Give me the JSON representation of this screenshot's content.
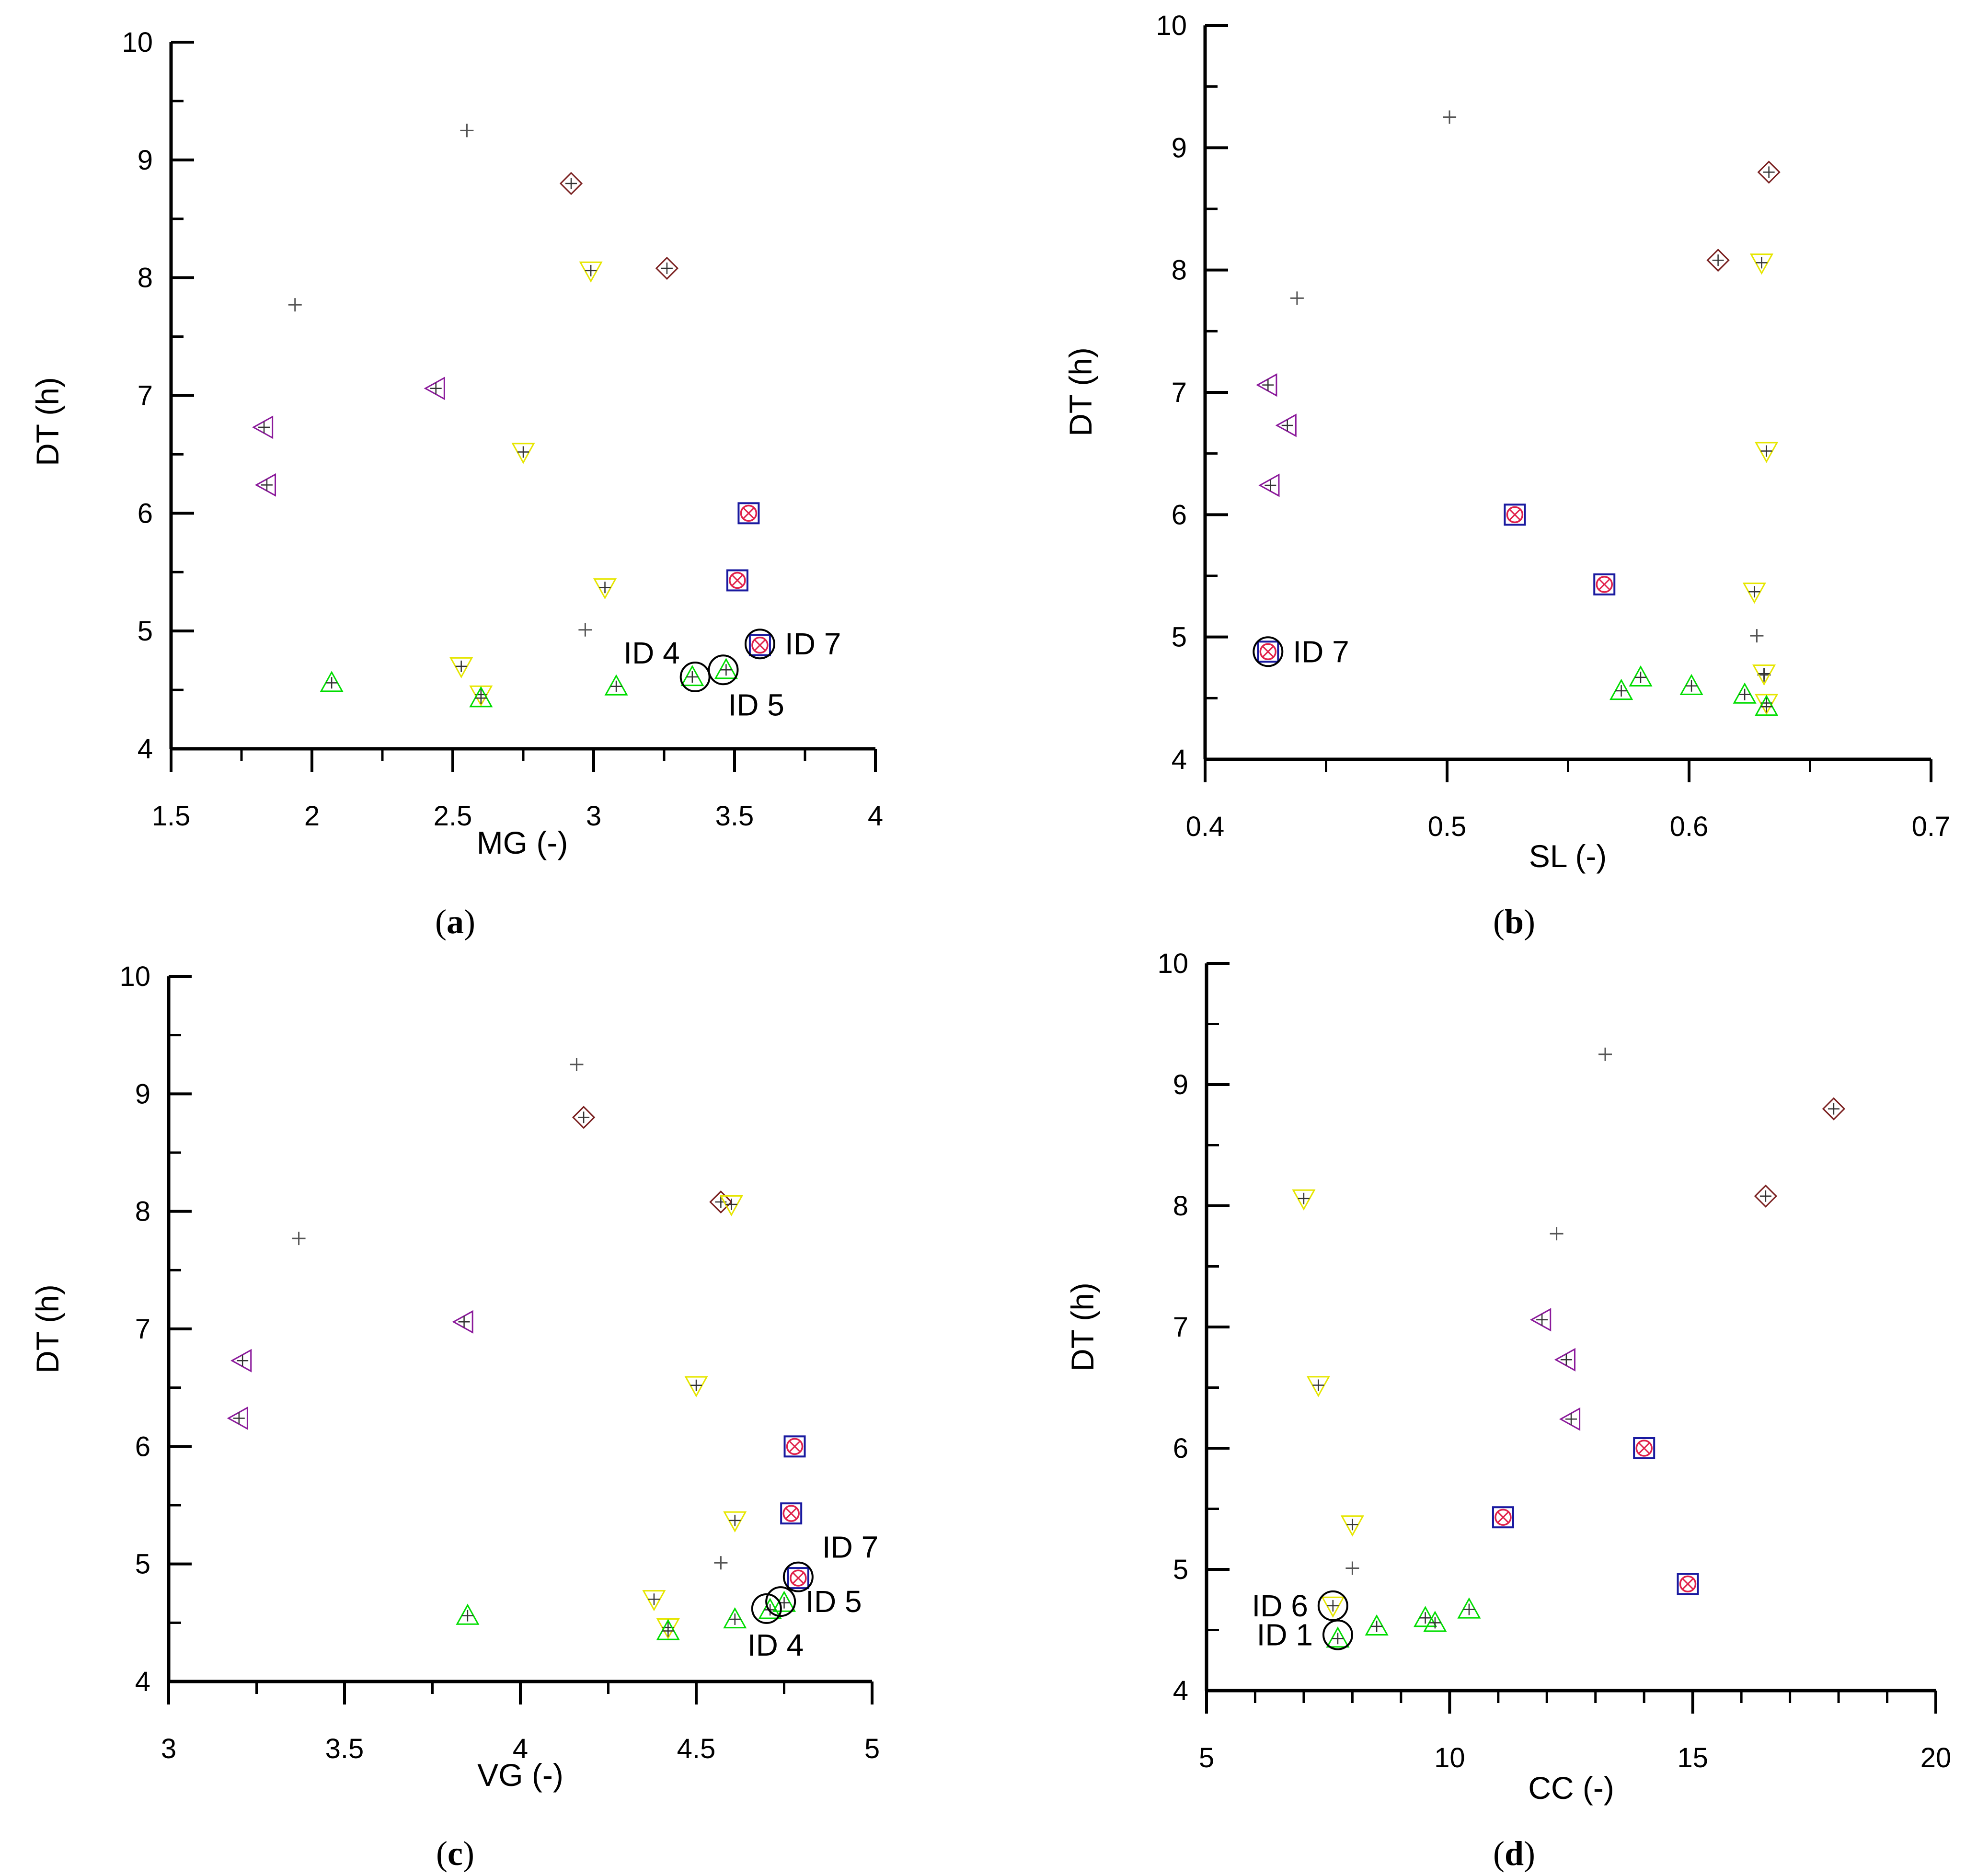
{
  "figure": {
    "colors": {
      "plus": "#555555",
      "triangle_up": "#00dd00",
      "triangle_down": "#e6e600",
      "triangle_left": "#8b1a9b",
      "diamond": "#7a2020",
      "square": "#1a1aa0",
      "circle_x": "#e0204a",
      "annotation": "#000000"
    }
  },
  "chart_data": [
    {
      "id": "a",
      "type": "scatter",
      "caption": {
        "open": "(",
        "letter": "a",
        "close": ")"
      },
      "xlabel": "MG (-)",
      "ylabel": "DT (h)",
      "xlim": [
        1.5,
        4
      ],
      "ylim": [
        4,
        10
      ],
      "xticks": [
        "1.5",
        "2",
        "2.5",
        "3",
        "3.5",
        "4"
      ],
      "yticks": [
        "4",
        "5",
        "6",
        "7",
        "8",
        "9",
        "10"
      ],
      "points": [
        {
          "m": "plus",
          "x": 2.55,
          "y": 9.25
        },
        {
          "m": "plus",
          "x": 1.94,
          "y": 7.77
        },
        {
          "m": "plus",
          "x": 2.97,
          "y": 5.01
        },
        {
          "m": "diamond",
          "x": 2.92,
          "y": 8.8
        },
        {
          "m": "diamond",
          "x": 3.26,
          "y": 8.08
        },
        {
          "m": "tri_down",
          "x": 2.99,
          "y": 8.06
        },
        {
          "m": "tri_down",
          "x": 2.75,
          "y": 6.52
        },
        {
          "m": "tri_down",
          "x": 3.04,
          "y": 5.37
        },
        {
          "m": "tri_down",
          "x": 2.53,
          "y": 4.7
        },
        {
          "m": "tri_down",
          "x": 2.6,
          "y": 4.46
        },
        {
          "m": "tri_left",
          "x": 2.44,
          "y": 7.06
        },
        {
          "m": "tri_left",
          "x": 1.83,
          "y": 6.73
        },
        {
          "m": "tri_left",
          "x": 1.84,
          "y": 6.24
        },
        {
          "m": "square_x",
          "x": 3.55,
          "y": 6.0
        },
        {
          "m": "square_x",
          "x": 3.51,
          "y": 5.43
        },
        {
          "m": "square_x",
          "x": 3.59,
          "y": 4.88
        },
        {
          "m": "tri_up",
          "x": 2.07,
          "y": 4.56
        },
        {
          "m": "tri_up",
          "x": 2.6,
          "y": 4.43
        },
        {
          "m": "tri_up",
          "x": 3.08,
          "y": 4.53
        },
        {
          "m": "tri_up",
          "x": 3.35,
          "y": 4.61
        },
        {
          "m": "tri_up",
          "x": 3.47,
          "y": 4.67
        }
      ],
      "annotations": [
        {
          "text": "ID 4",
          "x": 3.36,
          "y": 4.61,
          "side": "upper-left"
        },
        {
          "text": "ID 5",
          "x": 3.46,
          "y": 4.67,
          "side": "lower-right"
        },
        {
          "text": "ID 7",
          "x": 3.59,
          "y": 4.89,
          "side": "right"
        }
      ]
    },
    {
      "id": "b",
      "type": "scatter",
      "caption": {
        "open": "(",
        "letter": "b",
        "close": ")"
      },
      "xlabel": "SL (-)",
      "ylabel": "DT (h)",
      "xlim": [
        0.4,
        0.7
      ],
      "ylim": [
        4,
        10
      ],
      "xticks": [
        "0.4",
        "0.5",
        "0.6",
        "0.7"
      ],
      "yticks": [
        "4",
        "5",
        "6",
        "7",
        "8",
        "9",
        "10"
      ],
      "points": [
        {
          "m": "plus",
          "x": 0.501,
          "y": 9.25
        },
        {
          "m": "plus",
          "x": 0.438,
          "y": 7.77
        },
        {
          "m": "plus",
          "x": 0.628,
          "y": 5.01
        },
        {
          "m": "plus",
          "x": 0.631,
          "y": 4.69
        },
        {
          "m": "diamond",
          "x": 0.633,
          "y": 8.8
        },
        {
          "m": "diamond",
          "x": 0.612,
          "y": 8.08
        },
        {
          "m": "tri_down",
          "x": 0.63,
          "y": 8.06
        },
        {
          "m": "tri_down",
          "x": 0.632,
          "y": 6.52
        },
        {
          "m": "tri_down",
          "x": 0.627,
          "y": 5.37
        },
        {
          "m": "tri_down",
          "x": 0.631,
          "y": 4.7
        },
        {
          "m": "tri_down",
          "x": 0.632,
          "y": 4.46
        },
        {
          "m": "tri_left",
          "x": 0.426,
          "y": 7.06
        },
        {
          "m": "tri_left",
          "x": 0.434,
          "y": 6.73
        },
        {
          "m": "tri_left",
          "x": 0.427,
          "y": 6.24
        },
        {
          "m": "square_x",
          "x": 0.528,
          "y": 6.0
        },
        {
          "m": "square_x",
          "x": 0.565,
          "y": 5.43
        },
        {
          "m": "square_x",
          "x": 0.426,
          "y": 4.88
        },
        {
          "m": "tri_up",
          "x": 0.572,
          "y": 4.56
        },
        {
          "m": "tri_up",
          "x": 0.58,
          "y": 4.67
        },
        {
          "m": "tri_up",
          "x": 0.601,
          "y": 4.6
        },
        {
          "m": "tri_up",
          "x": 0.623,
          "y": 4.53
        },
        {
          "m": "tri_up",
          "x": 0.632,
          "y": 4.43
        }
      ],
      "annotations": [
        {
          "text": "ID 7",
          "x": 0.426,
          "y": 4.88,
          "side": "right"
        }
      ]
    },
    {
      "id": "c",
      "type": "scatter",
      "caption": {
        "open": "(",
        "letter": "c",
        "close": ")"
      },
      "xlabel": "VG (-)",
      "ylabel": "DT (h)",
      "xlim": [
        3,
        5
      ],
      "ylim": [
        4,
        10
      ],
      "xticks": [
        "3",
        "3.5",
        "4",
        "4.5",
        "5"
      ],
      "yticks": [
        "4",
        "5",
        "6",
        "7",
        "8",
        "9",
        "10"
      ],
      "points": [
        {
          "m": "plus",
          "x": 4.16,
          "y": 9.25
        },
        {
          "m": "plus",
          "x": 3.37,
          "y": 7.77
        },
        {
          "m": "plus",
          "x": 4.57,
          "y": 5.01
        },
        {
          "m": "diamond",
          "x": 4.18,
          "y": 8.8
        },
        {
          "m": "diamond",
          "x": 4.57,
          "y": 8.08
        },
        {
          "m": "tri_down",
          "x": 4.6,
          "y": 8.06
        },
        {
          "m": "tri_down",
          "x": 4.5,
          "y": 6.52
        },
        {
          "m": "tri_down",
          "x": 4.61,
          "y": 5.37
        },
        {
          "m": "tri_down",
          "x": 4.38,
          "y": 4.7
        },
        {
          "m": "tri_down",
          "x": 4.42,
          "y": 4.46
        },
        {
          "m": "tri_left",
          "x": 3.84,
          "y": 7.06
        },
        {
          "m": "tri_left",
          "x": 3.21,
          "y": 6.73
        },
        {
          "m": "tri_left",
          "x": 3.2,
          "y": 6.24
        },
        {
          "m": "square_x",
          "x": 4.78,
          "y": 6.0
        },
        {
          "m": "square_x",
          "x": 4.77,
          "y": 5.43
        },
        {
          "m": "square_x",
          "x": 4.79,
          "y": 4.88
        },
        {
          "m": "tri_up",
          "x": 3.85,
          "y": 4.56
        },
        {
          "m": "tri_up",
          "x": 4.42,
          "y": 4.43
        },
        {
          "m": "tri_up",
          "x": 4.61,
          "y": 4.53
        },
        {
          "m": "tri_up",
          "x": 4.71,
          "y": 4.61
        },
        {
          "m": "tri_up",
          "x": 4.75,
          "y": 4.67
        }
      ],
      "annotations": [
        {
          "text": "ID 7",
          "x": 4.79,
          "y": 4.89,
          "side": "upper-right"
        },
        {
          "text": "ID 5",
          "x": 4.74,
          "y": 4.68,
          "side": "right"
        },
        {
          "text": "ID 4",
          "x": 4.7,
          "y": 4.62,
          "side": "lower"
        }
      ]
    },
    {
      "id": "d",
      "type": "scatter",
      "caption": {
        "open": "(",
        "letter": "d",
        "close": ")"
      },
      "xlabel": "CC (-)",
      "ylabel": "DT (h)",
      "xlim": [
        5,
        20
      ],
      "ylim": [
        4,
        10
      ],
      "xticks": [
        "5",
        "10",
        "15",
        "20"
      ],
      "yticks": [
        "4",
        "5",
        "6",
        "7",
        "8",
        "9",
        "10"
      ],
      "points": [
        {
          "m": "plus",
          "x": 13.2,
          "y": 9.25
        },
        {
          "m": "plus",
          "x": 12.2,
          "y": 7.77
        },
        {
          "m": "plus",
          "x": 8.0,
          "y": 5.01
        },
        {
          "m": "diamond",
          "x": 17.9,
          "y": 8.8
        },
        {
          "m": "diamond",
          "x": 16.5,
          "y": 8.08
        },
        {
          "m": "tri_down",
          "x": 7.0,
          "y": 8.06
        },
        {
          "m": "tri_down",
          "x": 7.3,
          "y": 6.52
        },
        {
          "m": "tri_down",
          "x": 8.0,
          "y": 5.37
        },
        {
          "m": "tri_down",
          "x": 7.6,
          "y": 4.7
        },
        {
          "m": "tri_left",
          "x": 11.9,
          "y": 7.06
        },
        {
          "m": "tri_left",
          "x": 12.4,
          "y": 6.73
        },
        {
          "m": "tri_left",
          "x": 12.5,
          "y": 6.24
        },
        {
          "m": "square_x",
          "x": 14.0,
          "y": 6.0
        },
        {
          "m": "square_x",
          "x": 11.1,
          "y": 5.43
        },
        {
          "m": "square_x",
          "x": 14.9,
          "y": 4.88
        },
        {
          "m": "tri_up",
          "x": 7.7,
          "y": 4.43
        },
        {
          "m": "tri_up",
          "x": 8.5,
          "y": 4.53
        },
        {
          "m": "tri_up",
          "x": 9.5,
          "y": 4.6
        },
        {
          "m": "tri_up",
          "x": 9.7,
          "y": 4.56
        },
        {
          "m": "tri_up",
          "x": 10.4,
          "y": 4.67
        }
      ],
      "annotations": [
        {
          "text": "ID 6",
          "x": 7.6,
          "y": 4.7,
          "side": "left"
        },
        {
          "text": "ID 1",
          "x": 7.7,
          "y": 4.46,
          "side": "left"
        }
      ]
    }
  ]
}
